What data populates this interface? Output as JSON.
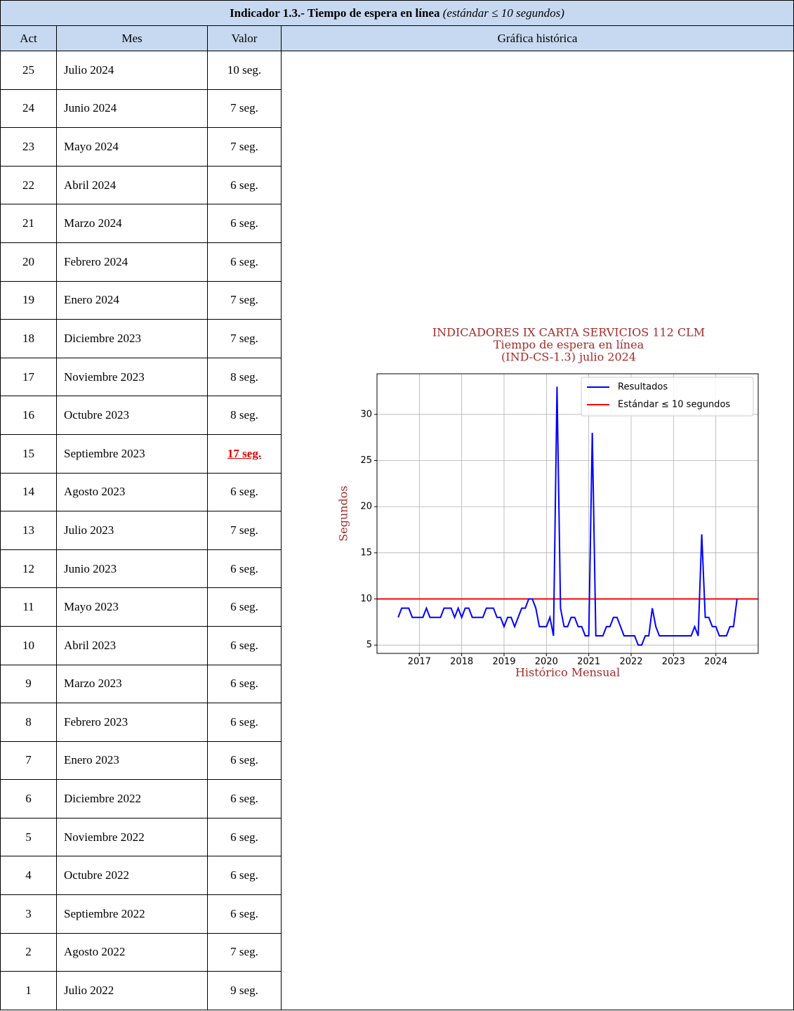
{
  "header": {
    "title": "Indicador 1.3.- Tiempo de espera en línea",
    "subtitle": "(estándar ≤ 10 segundos)"
  },
  "columns": [
    "Act",
    "Mes",
    "Valor",
    "Gráfica histórica"
  ],
  "rows": [
    [
      "25",
      "Julio 2024",
      "10 seg."
    ],
    [
      "24",
      "Junio 2024",
      "7 seg."
    ],
    [
      "23",
      "Mayo 2024",
      "7 seg."
    ],
    [
      "22",
      "Abril 2024",
      "6 seg."
    ],
    [
      "21",
      "Marzo 2024",
      "6 seg."
    ],
    [
      "20",
      "Febrero 2024",
      "6 seg."
    ],
    [
      "19",
      "Enero 2024",
      "7 seg."
    ],
    [
      "18",
      "Diciembre 2023",
      "7 seg."
    ],
    [
      "17",
      "Noviembre 2023",
      "8 seg."
    ],
    [
      "16",
      "Octubre 2023",
      "8 seg."
    ],
    [
      "15",
      "Septiembre 2023",
      "17 seg."
    ],
    [
      "14",
      "Agosto 2023",
      "6 seg."
    ],
    [
      "13",
      "Julio 2023",
      "7 seg."
    ],
    [
      "12",
      "Junio 2023",
      "6 seg."
    ],
    [
      "11",
      "Mayo 2023",
      "6 seg."
    ],
    [
      "10",
      "Abril 2023",
      "6 seg."
    ],
    [
      "9",
      "Marzo 2023",
      "6 seg."
    ],
    [
      "8",
      "Febrero 2023",
      "6 seg."
    ],
    [
      "7",
      "Enero 2023",
      "6 seg."
    ],
    [
      "6",
      "Diciembre 2022",
      "6 seg."
    ],
    [
      "5",
      "Noviembre 2022",
      "6 seg."
    ],
    [
      "4",
      "Octubre 2022",
      "6 seg."
    ],
    [
      "3",
      "Septiembre 2022",
      "6 seg."
    ],
    [
      "2",
      "Agosto 2022",
      "7 seg."
    ],
    [
      "1",
      "Julio 2022",
      "9 seg."
    ]
  ],
  "chart_data": {
    "type": "line",
    "title": [
      "INDICADORES IX CARTA SERVICIOS 112 CLM",
      "Tiempo de espera en línea",
      "(IND-CS-1.3) julio 2024"
    ],
    "x_label": "Histórico Mensual",
    "y_label": "Segundos",
    "x": [
      2016.5,
      2016.583,
      2016.667,
      2016.75,
      2016.833,
      2016.917,
      2017,
      2017.083,
      2017.167,
      2017.25,
      2017.333,
      2017.417,
      2017.5,
      2017.583,
      2017.667,
      2017.75,
      2017.833,
      2017.917,
      2018,
      2018.083,
      2018.167,
      2018.25,
      2018.333,
      2018.417,
      2018.5,
      2018.583,
      2018.667,
      2018.75,
      2018.833,
      2018.917,
      2019,
      2019.083,
      2019.167,
      2019.25,
      2019.333,
      2019.417,
      2019.5,
      2019.583,
      2019.667,
      2019.75,
      2019.833,
      2019.917,
      2020,
      2020.083,
      2020.167,
      2020.25,
      2020.333,
      2020.417,
      2020.5,
      2020.583,
      2020.667,
      2020.75,
      2020.833,
      2020.917,
      2021,
      2021.083,
      2021.167,
      2021.25,
      2021.333,
      2021.417,
      2021.5,
      2021.583,
      2021.667,
      2021.75,
      2021.833,
      2021.917,
      2022,
      2022.083,
      2022.167,
      2022.25,
      2022.333,
      2022.417,
      2022.5,
      2022.583,
      2022.667,
      2022.75,
      2022.833,
      2022.917,
      2023,
      2023.083,
      2023.167,
      2023.25,
      2023.333,
      2023.417,
      2023.5,
      2023.583,
      2023.667,
      2023.75,
      2023.833,
      2023.917,
      2024,
      2024.083,
      2024.167,
      2024.25,
      2024.333,
      2024.417,
      2024.5
    ],
    "series": [
      {
        "name": "Resultados",
        "color": "#0000ff",
        "values": [
          8,
          9,
          9,
          9,
          8,
          8,
          8,
          8,
          9,
          8,
          8,
          8,
          8,
          9,
          9,
          9,
          8,
          9,
          8,
          9,
          9,
          8,
          8,
          8,
          8,
          9,
          9,
          9,
          8,
          8,
          7,
          8,
          8,
          7,
          8,
          9,
          9,
          10,
          10,
          9,
          7,
          7,
          7,
          8,
          6,
          33,
          9,
          7,
          7,
          8,
          8,
          7,
          7,
          6,
          6,
          28,
          6,
          6,
          6,
          7,
          7,
          8,
          8,
          7,
          6,
          6,
          6,
          6,
          5,
          5,
          6,
          6,
          9,
          7,
          6,
          6,
          6,
          6,
          6,
          6,
          6,
          6,
          6,
          6,
          7,
          6,
          17,
          8,
          8,
          7,
          7,
          6,
          6,
          6,
          7,
          7,
          10
        ]
      }
    ],
    "threshold": {
      "name": "Estándar ≤ 10 segundos",
      "color": "#ff0000",
      "value": 10
    },
    "xlim": [
      2016.0,
      2025.0
    ],
    "xticks": [
      2017,
      2018,
      2019,
      2020,
      2021,
      2022,
      2023,
      2024
    ],
    "ylim": [
      4.1,
      34.4
    ],
    "yticks": [
      5,
      10,
      15,
      20,
      25,
      30
    ],
    "grid": true,
    "legend": "upper right"
  }
}
